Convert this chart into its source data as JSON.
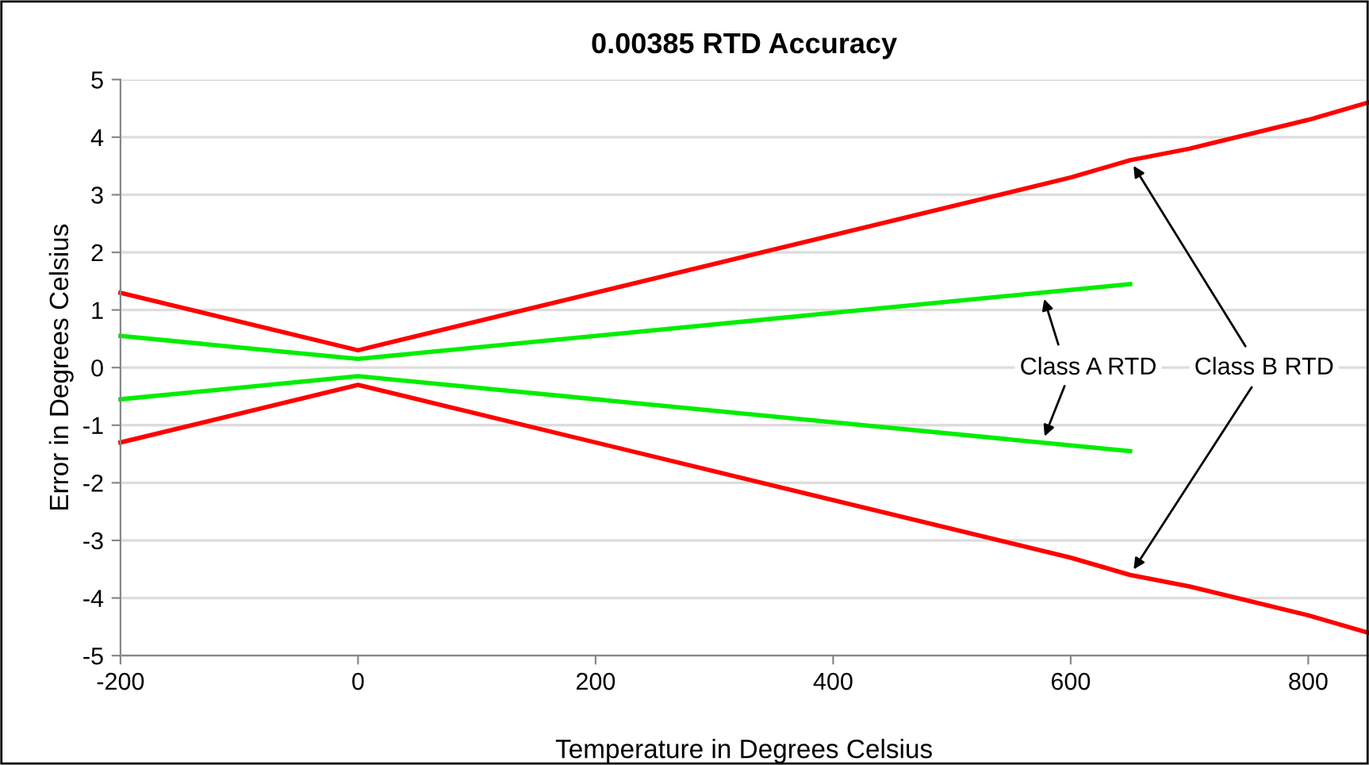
{
  "chart_data": {
    "type": "line",
    "title": "0.00385 RTD Accuracy",
    "xlabel": "Temperature in Degrees Celsius",
    "ylabel": "Error in Degrees Celsius",
    "series": [
      {
        "color": "#ff0000",
        "x": [
          -200,
          0,
          600,
          650,
          700,
          800,
          850
        ],
        "values": [
          1.3,
          0.3,
          3.3,
          3.6,
          3.8,
          4.3,
          4.6
        ]
      },
      {
        "color": "#ff0000",
        "x": [
          -200,
          0,
          600,
          650,
          700,
          800,
          850
        ],
        "values": [
          -1.3,
          -0.3,
          -3.3,
          -3.6,
          -3.8,
          -4.3,
          -4.6
        ]
      },
      {
        "color": "#00ee00",
        "x": [
          -200,
          0,
          650
        ],
        "values": [
          0.55,
          0.15,
          1.45
        ]
      },
      {
        "color": "#00ee00",
        "x": [
          -200,
          0,
          650
        ],
        "values": [
          -0.55,
          -0.15,
          -1.45
        ]
      }
    ],
    "annotations": [
      {
        "text": "Class A RTD",
        "x": 576,
        "y": -1.3
      },
      {
        "text": "Class B RTD",
        "x": 650,
        "y": 3.6
      }
    ],
    "xlim": [
      -200,
      850
    ],
    "ylim": [
      -5,
      5
    ],
    "xticks": [
      -200,
      0,
      200,
      400,
      600,
      800
    ],
    "yticks": [
      -5,
      -4,
      -3,
      -2,
      -1,
      0,
      1,
      2,
      3,
      4,
      5
    ],
    "grid": "y",
    "legend": false,
    "marker": "none",
    "line_style": "solid"
  }
}
